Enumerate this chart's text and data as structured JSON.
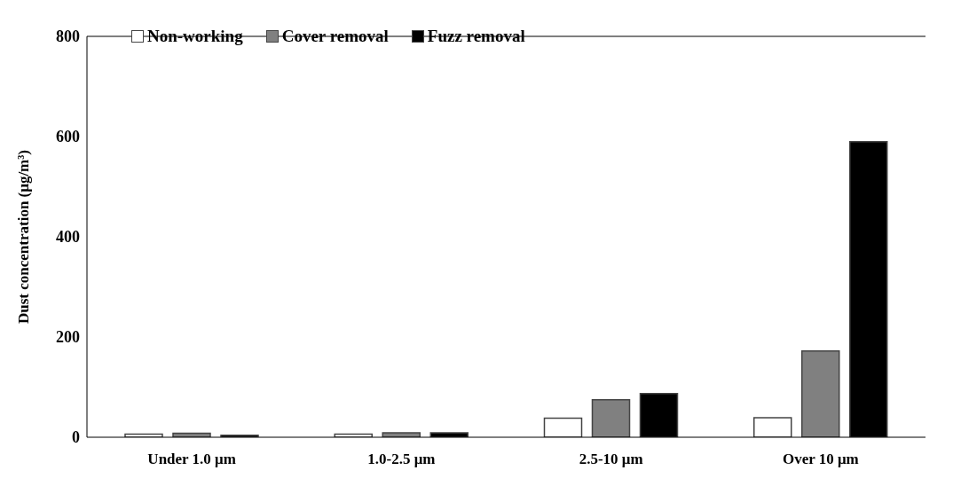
{
  "chart_data": {
    "type": "bar",
    "ylabel": "Dust concentration (μg/m³)",
    "categories": [
      "Under 1.0 μm",
      "1.0-2.5 μm",
      "2.5-10 μm",
      "Over 10 μm"
    ],
    "series": [
      {
        "name": "Non-working",
        "color": "#ffffff",
        "values": [
          6,
          6,
          38,
          39
        ]
      },
      {
        "name": "Cover removal",
        "color": "#808080",
        "values": [
          8,
          9,
          75,
          172
        ]
      },
      {
        "name": "Fuzz removal",
        "color": "#000000",
        "values": [
          4,
          9,
          87,
          590
        ]
      }
    ],
    "ylim": [
      0,
      800
    ],
    "yticks": [
      0,
      200,
      400,
      600,
      800
    ],
    "legend": "top left"
  }
}
